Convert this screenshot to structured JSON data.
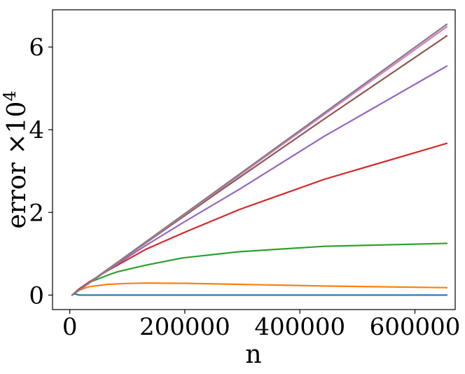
{
  "chart_data": {
    "type": "line",
    "title": "",
    "xlabel": "n",
    "ylabel_base": "error ×10",
    "ylabel_exponent": "4",
    "xlim": [
      -30000,
      670000
    ],
    "ylim": [
      -0.35,
      6.9
    ],
    "xticks": [
      0,
      200000,
      400000,
      600000
    ],
    "xtick_labels": [
      "0",
      "200000",
      "400000",
      "600000"
    ],
    "yticks": [
      0,
      2,
      4,
      6
    ],
    "ytick_labels": [
      "0",
      "2",
      "4",
      "6"
    ],
    "grid": false,
    "legend": "none",
    "series": [
      {
        "color": "#1f77b4",
        "x": [
          4096,
          8192,
          16384,
          32768,
          65536,
          131072,
          262144,
          524288,
          655360
        ],
        "y": [
          0.0,
          0.03,
          0.0,
          0.0,
          0.0,
          0.0,
          0.0,
          0.0,
          0.0
        ]
      },
      {
        "color": "#ff7f0e",
        "x": [
          4096,
          16384,
          32768,
          65536,
          98304,
          131072,
          196608,
          294912,
          442368,
          655360
        ],
        "y": [
          0.0,
          0.12,
          0.2,
          0.26,
          0.28,
          0.29,
          0.285,
          0.26,
          0.22,
          0.18
        ]
      },
      {
        "color": "#2ca02c",
        "x": [
          4096,
          16384,
          32768,
          65536,
          81920,
          131072,
          196608,
          294912,
          442368,
          655360
        ],
        "y": [
          0.0,
          0.15,
          0.3,
          0.48,
          0.56,
          0.72,
          0.9,
          1.05,
          1.18,
          1.25
        ]
      },
      {
        "color": "#d62728",
        "x": [
          4096,
          16384,
          32768,
          65536,
          131072,
          196608,
          294912,
          442368,
          655360
        ],
        "y": [
          0.0,
          0.15,
          0.31,
          0.59,
          1.1,
          1.5,
          2.07,
          2.8,
          3.67
        ]
      },
      {
        "color": "#9467bd",
        "x": [
          4096,
          65536,
          131072,
          196608,
          294912,
          442368,
          655360
        ],
        "y": [
          0.0,
          0.6,
          1.19,
          1.75,
          2.56,
          3.84,
          5.54
        ]
      },
      {
        "color": "#8c564b",
        "x": [
          4096,
          65536,
          131072,
          262144,
          442368,
          655360
        ],
        "y": [
          0.0,
          0.62,
          1.25,
          2.53,
          4.26,
          6.27
        ]
      },
      {
        "color": "#e377c2",
        "x": [
          4096,
          655360
        ],
        "y": [
          0.0,
          6.49
        ]
      },
      {
        "color": "#7f7f7f",
        "x": [
          4096,
          655360
        ],
        "y": [
          0.0,
          6.55
        ]
      }
    ]
  }
}
